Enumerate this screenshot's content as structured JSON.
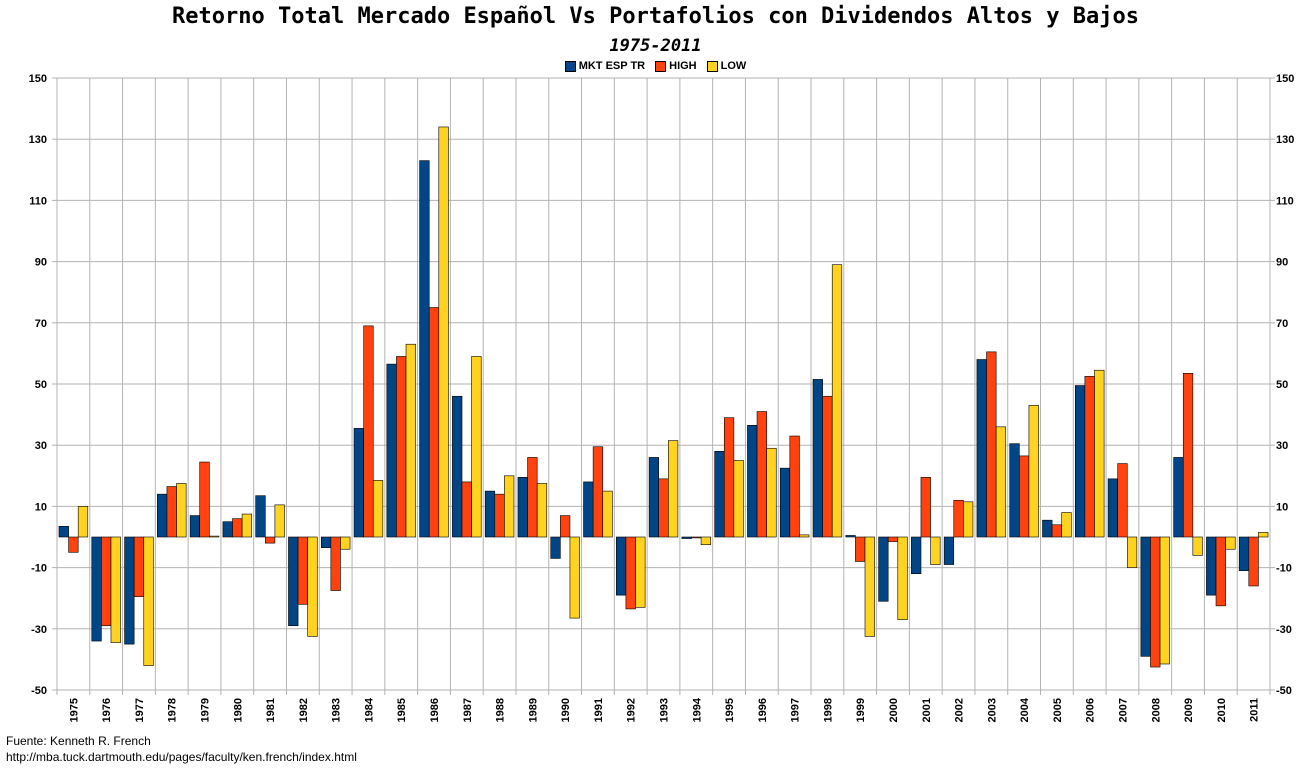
{
  "title": "Retorno Total Mercado Español Vs Portafolios con Dividendos Altos y Bajos",
  "subtitle": "1975-2011",
  "source": {
    "line1": "Fuente: Kenneth R. French",
    "line2": "http://mba.tuck.dartmouth.edu/pages/faculty/ken.french/index.html"
  },
  "chart_data": {
    "type": "bar",
    "categories": [
      "1975",
      "1976",
      "1977",
      "1978",
      "1979",
      "1980",
      "1981",
      "1982",
      "1983",
      "1984",
      "1985",
      "1986",
      "1987",
      "1988",
      "1989",
      "1990",
      "1991",
      "1992",
      "1993",
      "1994",
      "1995",
      "1996",
      "1997",
      "1998",
      "1999",
      "2000",
      "2001",
      "2002",
      "2003",
      "2004",
      "2005",
      "2006",
      "2007",
      "2008",
      "2009",
      "2010",
      "2011"
    ],
    "series": [
      {
        "name": "MKT ESP TR",
        "color": "#004586",
        "values": [
          3.5,
          -34,
          -35,
          14,
          7,
          5,
          13.5,
          -29,
          -3.5,
          35.5,
          56.5,
          123,
          46,
          15,
          19.5,
          -7,
          18,
          -19,
          26,
          -0.5,
          28,
          36.5,
          22.5,
          51.5,
          0.5,
          -21,
          -12,
          -9,
          58,
          30.5,
          5.5,
          49.5,
          19,
          -39,
          26,
          -19,
          -11
        ]
      },
      {
        "name": "HIGH",
        "color": "#FF420E",
        "values": [
          -5,
          -29,
          -19.5,
          16.5,
          24.5,
          6,
          -2,
          -22,
          -17.5,
          69,
          59,
          75,
          18,
          14,
          26,
          7,
          29.5,
          -23.5,
          19,
          -0.3,
          39,
          41,
          33,
          46,
          -8,
          -1.5,
          19.5,
          12,
          60.5,
          26.5,
          4,
          52.5,
          24,
          -42.5,
          53.5,
          -22.5,
          -16
        ]
      },
      {
        "name": "LOW",
        "color": "#FFD320",
        "values": [
          10,
          -34.5,
          -42,
          17.5,
          0.3,
          7.5,
          10.5,
          -32.5,
          -4,
          18.5,
          63,
          134,
          59,
          20,
          17.5,
          -26.5,
          15,
          -23,
          31.5,
          -2.5,
          25,
          29,
          0.7,
          89,
          -32.5,
          -27,
          -9,
          11.5,
          36,
          43,
          8,
          54.5,
          -10,
          -41.5,
          -6,
          -4,
          1.5
        ]
      }
    ],
    "ylim": [
      -50,
      150
    ],
    "yticks": [
      -50,
      -30,
      -10,
      10,
      30,
      50,
      70,
      90,
      110,
      130,
      150
    ],
    "grid": true,
    "legend_position": "top-center"
  }
}
